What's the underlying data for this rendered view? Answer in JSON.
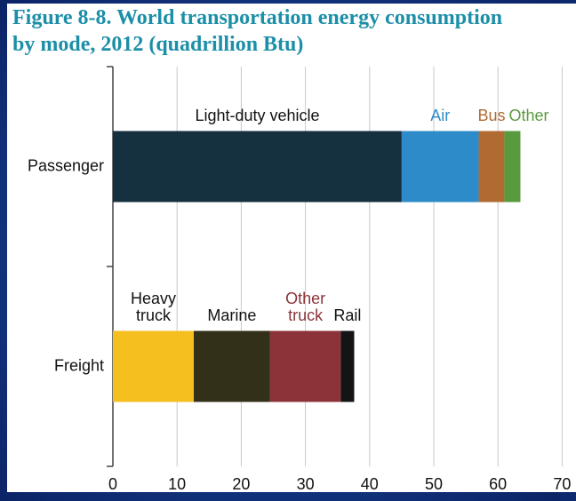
{
  "chart_data": {
    "type": "stacked_barh",
    "title": "Figure 8-8. World transportation energy consumption by mode, 2012 (quadrillion Btu)",
    "categories": [
      "Passenger",
      "Freight"
    ],
    "series": [
      {
        "name": "Light-duty vehicle",
        "color": "#15303f",
        "label_color": "#111111",
        "values": [
          45,
          null
        ]
      },
      {
        "name": "Air",
        "color": "#2e8bc9",
        "label_color": "#2e8bc9",
        "values": [
          12,
          null
        ]
      },
      {
        "name": "Bus",
        "color": "#b06a32",
        "label_color": "#b06a32",
        "values": [
          4,
          null
        ]
      },
      {
        "name": "Other",
        "color": "#5a9a3f",
        "label_color": "#5a9a3f",
        "values": [
          2.5,
          null
        ]
      },
      {
        "name": "Heavy truck",
        "color": "#f5bf20",
        "label_color": "#111111",
        "label_wrap": true,
        "values": [
          null,
          12.6
        ]
      },
      {
        "name": "Marine",
        "color": "#33301a",
        "label_color": "#111111",
        "values": [
          null,
          11.9
        ]
      },
      {
        "name": "Other truck",
        "color": "#8b3338",
        "label_color": "#8b3338",
        "label_wrap": true,
        "values": [
          null,
          11
        ]
      },
      {
        "name": "Rail",
        "color": "#141414",
        "label_color": "#111111",
        "values": [
          null,
          2.1
        ]
      }
    ],
    "xlim": [
      0,
      70
    ],
    "xticks": [
      0,
      10,
      20,
      30,
      40,
      50,
      60,
      70
    ],
    "grid": true
  }
}
